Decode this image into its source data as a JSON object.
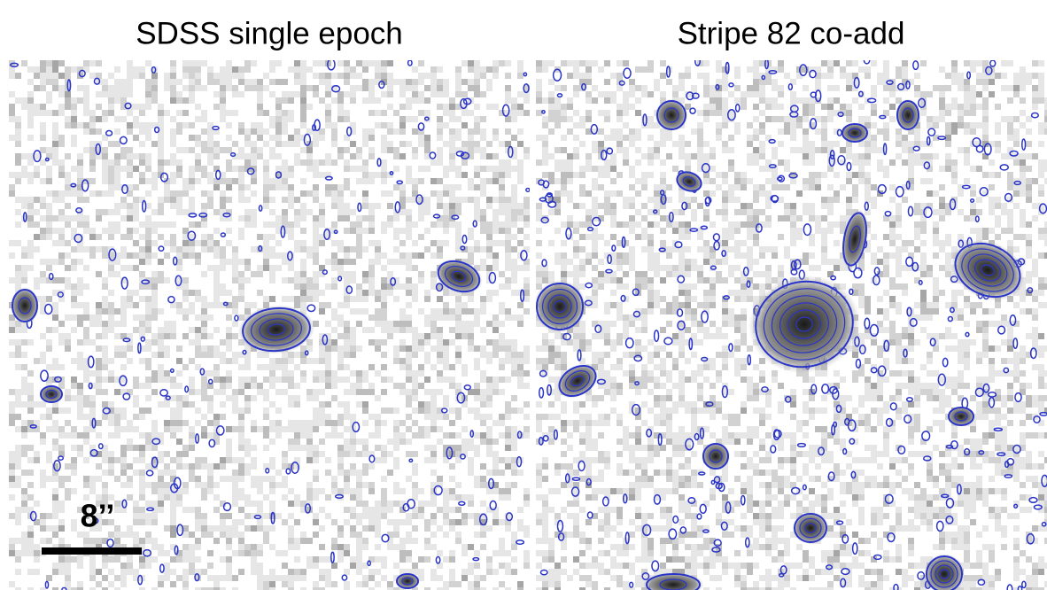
{
  "panels": [
    {
      "title": "SDSS single epoch"
    },
    {
      "title": "Stripe 82 co-add"
    }
  ],
  "scale_bar": {
    "label": "8’’"
  }
}
